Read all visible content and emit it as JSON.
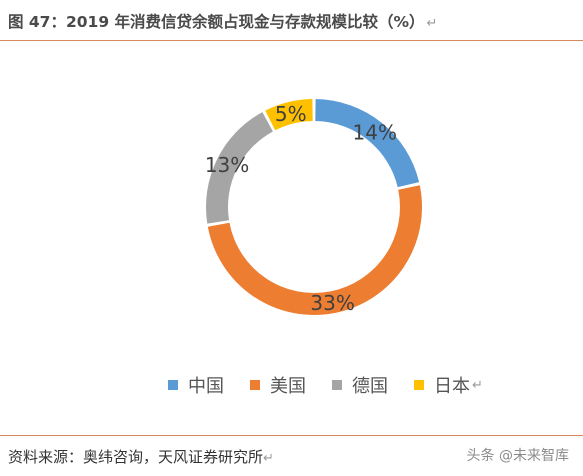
{
  "header": {
    "title": "图 47：2019 年消费信贷余额占现金与存款规模比较（%）"
  },
  "chart_data": {
    "type": "pie",
    "title": "",
    "categories": [
      "中国",
      "美国",
      "德国",
      "日本"
    ],
    "values": [
      14,
      33,
      13,
      5
    ],
    "labels": [
      "14%",
      "33%",
      "13%",
      "5%"
    ],
    "colors": [
      "#5b9bd5",
      "#ed7d31",
      "#a5a5a5",
      "#ffc000"
    ],
    "legend_position": "bottom",
    "style": "donut"
  },
  "footer": {
    "source": "资料来源：奥纬咨询，天风证券研究所",
    "watermark": "头条 @未来智库"
  }
}
